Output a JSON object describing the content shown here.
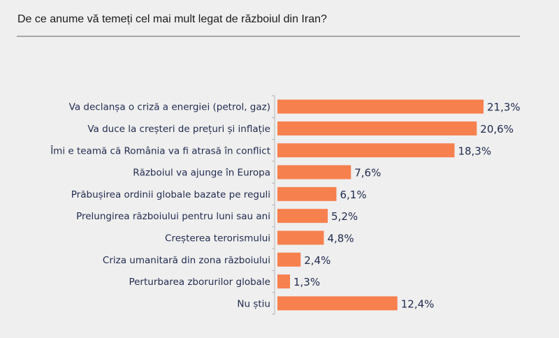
{
  "chart_data": {
    "type": "bar",
    "orientation": "horizontal",
    "title": "De ce anume vă temeți cel mai mult legat de războiul din Iran?",
    "categories": [
      "Va declanșa o criză a energiei (petrol, gaz)",
      "Va duce la creșteri de prețuri și inflație",
      "Îmi e teamă că România va fi atrasă în conflict",
      "Războiul va ajunge în Europa",
      "Prăbușirea ordinii globale bazate pe reguli",
      "Prelungirea războiului pentru luni sau ani",
      "Creșterea terorismului",
      "Criza umanitară din zona războiului",
      "Perturbarea zborurilor globale",
      "Nu știu"
    ],
    "values": [
      21.3,
      20.6,
      18.3,
      7.6,
      6.1,
      5.2,
      4.8,
      2.4,
      1.3,
      12.4
    ],
    "value_labels": [
      "21,3%",
      "20,6%",
      "18,3%",
      "7,6%",
      "6,1%",
      "5,2%",
      "4,8%",
      "2,4%",
      "1,3%",
      "12,4%"
    ],
    "xlabel": "",
    "ylabel": "",
    "xlim": [
      0,
      21.3
    ],
    "grid": false,
    "bar_color": "#f7804f"
  }
}
